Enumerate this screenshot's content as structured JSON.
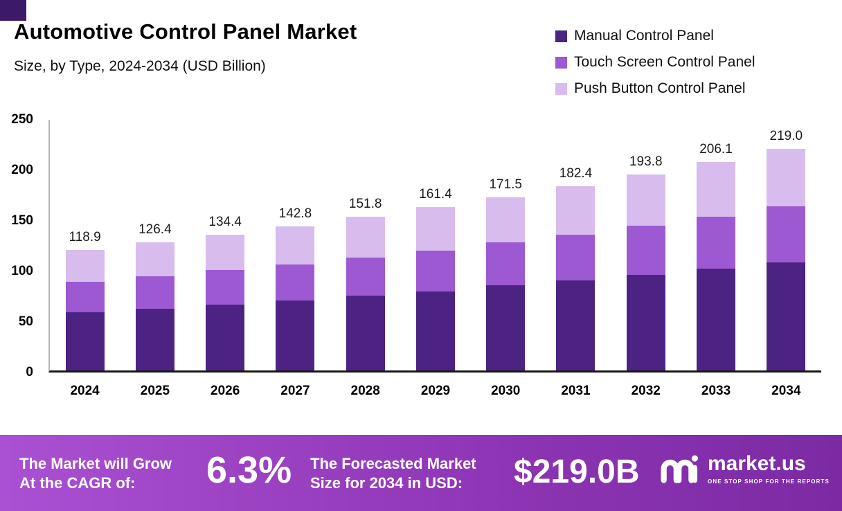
{
  "chart_data": {
    "type": "bar",
    "stacked": true,
    "title": "Automotive Control Panel Market",
    "subtitle": "Size, by Type, 2024-2034 (USD Billion)",
    "unit": "USD Billion",
    "categories": [
      "2024",
      "2025",
      "2026",
      "2027",
      "2028",
      "2029",
      "2030",
      "2031",
      "2032",
      "2033",
      "2034"
    ],
    "series": [
      {
        "name": "Manual Control Panel",
        "color": "#4c2383",
        "values": [
          57.5,
          61.0,
          65.0,
          69.0,
          74.0,
          78.0,
          84.0,
          89.0,
          94.5,
          100.5,
          107.0
        ]
      },
      {
        "name": "Touch Screen Control Panel",
        "color": "#9c59d1",
        "values": [
          30.5,
          32.0,
          34.0,
          36.0,
          38.0,
          40.5,
          42.5,
          45.5,
          48.5,
          51.5,
          55.0
        ]
      },
      {
        "name": "Push Button Control Panel",
        "color": "#d9bcee",
        "values": [
          30.9,
          33.4,
          35.4,
          37.8,
          39.8,
          42.9,
          45.0,
          47.9,
          50.8,
          54.1,
          57.0
        ]
      }
    ],
    "totals": [
      118.9,
      126.4,
      134.4,
      142.8,
      151.8,
      161.4,
      171.5,
      182.4,
      193.8,
      206.1,
      219.0
    ],
    "ylim": [
      0,
      250
    ],
    "yticks": [
      0,
      50,
      100,
      150,
      200,
      250
    ],
    "grid": false,
    "legend_position": "top-right"
  },
  "footer": {
    "cagr_label_line1": "The Market will Grow",
    "cagr_label_line2": "At the CAGR of:",
    "cagr_value": "6.3%",
    "forecast_label_line1": "The Forecasted Market",
    "forecast_label_line2": "Size for 2034 in USD:",
    "forecast_value": "$219.0B",
    "brand_name": "market.us",
    "brand_tagline": "ONE STOP SHOP FOR THE REPORTS"
  },
  "colors": {
    "corner_square": "#3c1a69",
    "banner_gradient_start": "#aa50d2",
    "banner_gradient_mid": "#8d35b4",
    "banner_gradient_end": "#7c2aa4"
  }
}
